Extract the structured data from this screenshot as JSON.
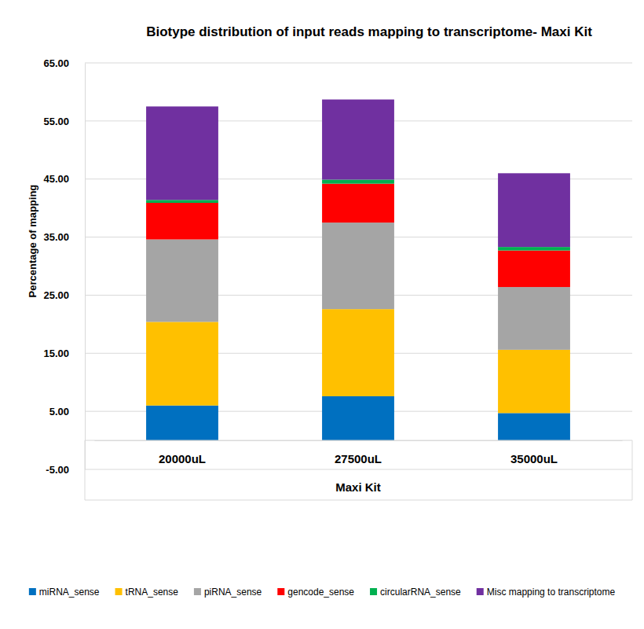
{
  "chart_data": {
    "type": "bar",
    "title": "Biotype distribution of input reads mapping to transcriptome- Maxi Kit",
    "x_label": "Maxi Kit",
    "y_label": "Percentage of mapping",
    "categories": [
      "20000uL",
      "27500uL",
      "35000uL"
    ],
    "series": [
      {
        "name": "miRNA_sense",
        "color": "#0070c0",
        "values": [
          6.0,
          7.6,
          4.7
        ]
      },
      {
        "name": "tRNA_sense",
        "color": "#ffc000",
        "values": [
          14.4,
          15.0,
          10.9
        ]
      },
      {
        "name": "piRNA_sense",
        "color": "#a5a5a5",
        "values": [
          14.2,
          14.9,
          10.8
        ]
      },
      {
        "name": "gencode_sense",
        "color": "#ff0000",
        "values": [
          6.3,
          6.7,
          6.3
        ]
      },
      {
        "name": "circularRNA_sense",
        "color": "#00b050",
        "values": [
          0.5,
          0.7,
          0.6
        ]
      },
      {
        "name": "Misc mapping to transcriptome",
        "color": "#7030a0",
        "values": [
          16.1,
          13.8,
          12.7
        ]
      }
    ],
    "stacked": true,
    "ylim": [
      -5,
      65
    ],
    "yticks": [
      {
        "value": -5,
        "label": "-5.00"
      },
      {
        "value": 5,
        "label": "5.00"
      },
      {
        "value": 15,
        "label": "15.00"
      },
      {
        "value": 25,
        "label": "25.00"
      },
      {
        "value": 35,
        "label": "35.00"
      },
      {
        "value": 45,
        "label": "45.00"
      },
      {
        "value": 55,
        "label": "55.00"
      },
      {
        "value": 65,
        "label": "65.00"
      }
    ],
    "grid": true,
    "legend": "bottom"
  }
}
